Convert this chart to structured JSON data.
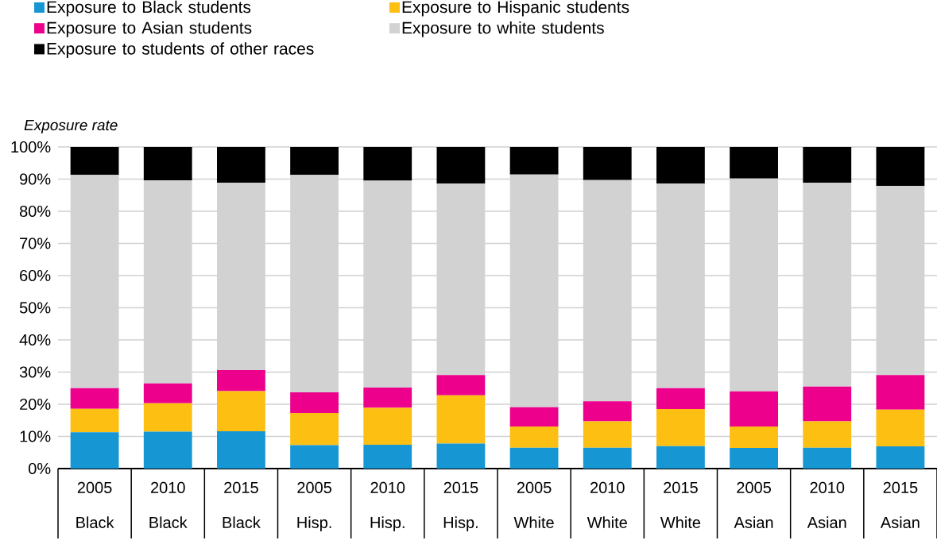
{
  "chart_data": {
    "type": "bar",
    "stacked": true,
    "ylabel": "Exposure rate",
    "categories": [
      "2005 Black",
      "2010 Black",
      "2015 Black",
      "2005 Hisp.",
      "2010 Hisp.",
      "2015 Hisp.",
      "2005 White",
      "2010 White",
      "2015 White",
      "2005 Asian",
      "2010 Asian",
      "2015 Asian"
    ],
    "series": [
      {
        "name": "Exposure to Black students",
        "color": "#1796d4",
        "values": [
          11.3,
          11.5,
          11.6,
          7.3,
          7.4,
          7.8,
          6.5,
          6.5,
          7.0,
          6.4,
          6.5,
          6.9
        ]
      },
      {
        "name": "Exposure to Hispanic students",
        "color": "#fcbf12",
        "values": [
          7.3,
          8.8,
          12.5,
          10.0,
          11.5,
          15.0,
          6.6,
          8.2,
          11.5,
          6.7,
          8.2,
          11.4
        ]
      },
      {
        "name": "Exposure to Asian students",
        "color": "#ec008c",
        "values": [
          6.4,
          6.2,
          6.5,
          6.4,
          6.3,
          6.3,
          6.0,
          6.2,
          6.5,
          10.9,
          10.8,
          10.8
        ]
      },
      {
        "name": "Exposure to white students",
        "color": "#d2d2d2",
        "values": [
          66.3,
          63.1,
          58.3,
          67.6,
          64.3,
          59.5,
          72.3,
          68.8,
          63.6,
          66.2,
          63.4,
          58.8
        ]
      },
      {
        "name": "Exposure to students of other races",
        "color": "#000000",
        "values": [
          8.7,
          10.4,
          11.1,
          8.7,
          10.5,
          11.4,
          8.6,
          10.3,
          11.4,
          9.8,
          11.1,
          12.1
        ]
      }
    ],
    "ylim": [
      0,
      100
    ],
    "yticks": [
      {
        "value": 0,
        "label": "0%"
      },
      {
        "value": 10,
        "label": "10%"
      },
      {
        "value": 20,
        "label": "20%"
      },
      {
        "value": 30,
        "label": "30%"
      },
      {
        "value": 40,
        "label": "40%"
      },
      {
        "value": 50,
        "label": "50%"
      },
      {
        "value": 60,
        "label": "60%"
      },
      {
        "value": 70,
        "label": "70%"
      },
      {
        "value": 80,
        "label": "80%"
      },
      {
        "value": 90,
        "label": "90%"
      },
      {
        "value": 100,
        "label": "100%"
      }
    ],
    "grid": "y",
    "legend": "top"
  }
}
